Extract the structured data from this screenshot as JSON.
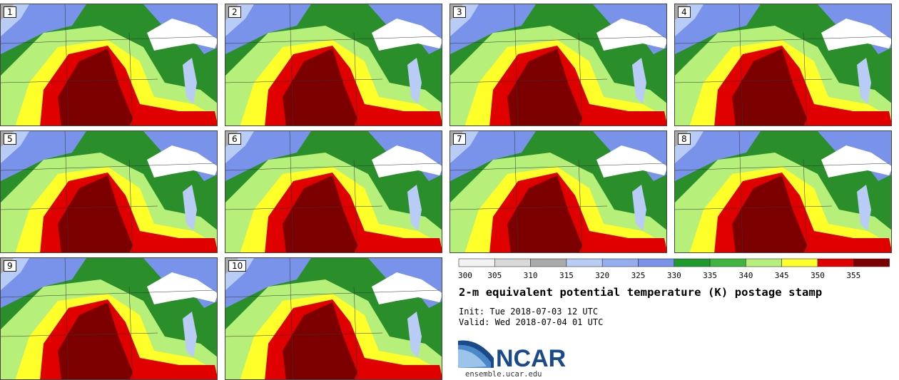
{
  "panels": [
    {
      "label": "1"
    },
    {
      "label": "2"
    },
    {
      "label": "3"
    },
    {
      "label": "4"
    },
    {
      "label": "5"
    },
    {
      "label": "6"
    },
    {
      "label": "7"
    },
    {
      "label": "8"
    },
    {
      "label": "9"
    },
    {
      "label": "10"
    }
  ],
  "colorbar": {
    "ticks": [
      "300",
      "305",
      "310",
      "315",
      "320",
      "325",
      "330",
      "335",
      "340",
      "345",
      "350",
      "355"
    ],
    "colors": [
      "#f2f2f2",
      "#d9d9d9",
      "#aaaaaa",
      "#b8ccf5",
      "#93aef0",
      "#7a93ea",
      "#1f9a2c",
      "#3fb53f",
      "#b6f07a",
      "#ffff2a",
      "#e00000",
      "#7c0000"
    ]
  },
  "title": "2-m equivalent potential temperature (K) postage stamp",
  "init_text": "Init: Tue 2018-07-03 12 UTC",
  "valid_text": "Valid: Wed 2018-07-04 01 UTC",
  "logo_text": "NCAR",
  "site": "ensemble.ucar.edu"
}
